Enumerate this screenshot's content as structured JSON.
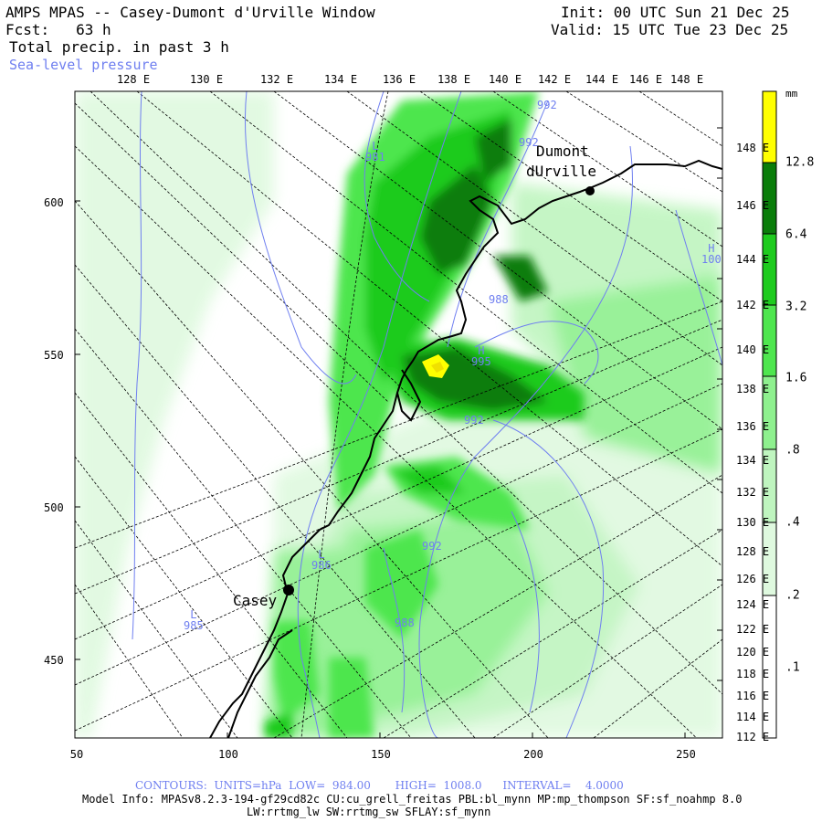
{
  "header": {
    "left_line1": "AMPS MPAS -- Casey-Dumont d'Urville Window",
    "left_line2": "Fcst:   63 h",
    "left_line3": "Total precip. in past 3 h",
    "left_line4": "Sea-level pressure",
    "right_line1": "Init: 00 UTC Sun 21 Dec 25",
    "right_line2": "Valid: 15 UTC Tue 23 Dec 25"
  },
  "top_lon_labels": [
    "128 E",
    "130 E",
    "132 E",
    "134 E",
    "136 E",
    "138 E",
    "140 E",
    "142 E",
    "144 E",
    "146 E",
    "148 E"
  ],
  "right_lat_labels": [
    "148 E",
    "146 E",
    "144 E",
    "142 E",
    "140 E",
    "138 E",
    "136 E",
    "134 E",
    "132 E",
    "130 E",
    "128 E",
    "126 E",
    "124 E",
    "122 E",
    "120 E",
    "118 E",
    "116 E",
    "114 E",
    "112 E"
  ],
  "y_axis_labels": [
    "600",
    "550",
    "500",
    "450"
  ],
  "x_axis_labels": [
    "50",
    "100",
    "150",
    "200",
    "250"
  ],
  "colorbar": {
    "unit": "mm",
    "labels": [
      "12.8",
      "6.4",
      "3.2",
      "1.6",
      ".8",
      ".4",
      ".2",
      ".1"
    ],
    "colors": [
      "#ffff00",
      "#0a7d0a",
      "#1ecb1e",
      "#4ee64e",
      "#8ef08e",
      "#bff5bf",
      "#dff9df",
      "#ffffff"
    ]
  },
  "places": {
    "dumont_line1": "Dumont",
    "dumont_line2": "dUrville",
    "casey": "Casey"
  },
  "pressure_labels": [
    {
      "text": "L",
      "sub": "981"
    },
    {
      "text": "992"
    },
    {
      "text": "992"
    },
    {
      "text": "H",
      "sub": "100"
    },
    {
      "text": "988"
    },
    {
      "text": "H",
      "sub": "995"
    },
    {
      "text": "992"
    },
    {
      "text": "L",
      "sub": "986"
    },
    {
      "text": "992"
    },
    {
      "text": "988"
    },
    {
      "text": "L",
      "sub": "985"
    }
  ],
  "footer": {
    "contours": "CONTOURS:  UNITS=hPa  LOW=  984.00       HIGH=  1008.0      INTERVAL=    4.0000",
    "model_line1": "Model Info: MPASv8.2.3-194-gf29cd82c CU:cu_grell_freitas PBL:bl_mynn MP:mp_thompson SF:sf_noahmp 8.0",
    "model_line2": "LW:rrtmg_lw SW:rrtmg_sw SFLAY:sf_mynn"
  }
}
